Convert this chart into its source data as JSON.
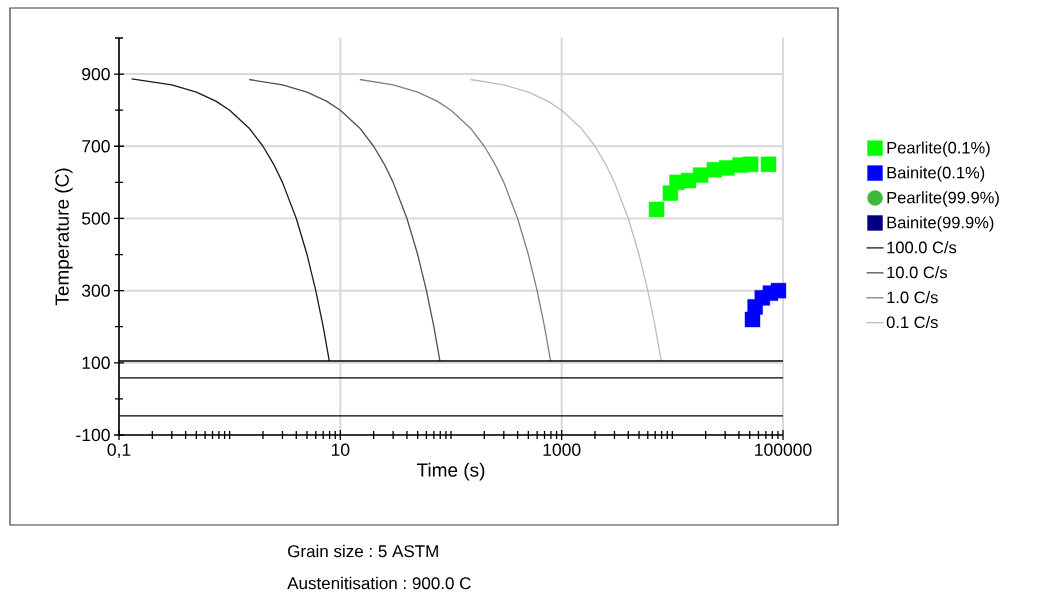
{
  "chart_data": {
    "type": "line",
    "xlabel": "Time (s)",
    "ylabel": "Temperature (C)",
    "log": "x",
    "grid": true,
    "legend": "right",
    "xlim": [
      0.1,
      100000
    ],
    "ylim": [
      -100,
      1000
    ],
    "xticks": [
      {
        "value": 0.1,
        "label": "0,1"
      },
      {
        "value": 1,
        "label": null
      },
      10,
      {
        "value": 100,
        "label": null
      },
      1000,
      {
        "value": 10000,
        "label": null
      },
      100000
    ],
    "yticks": [
      -100,
      {
        "value": 0,
        "label": null
      },
      100,
      {
        "value": 200,
        "label": null
      },
      300,
      {
        "value": 400,
        "label": null
      },
      500,
      {
        "value": 600,
        "label": null
      },
      700,
      {
        "value": 800,
        "label": null
      },
      900,
      {
        "value": 1000,
        "label": null
      }
    ],
    "series": [
      {
        "name": "Pearlite(0.1%)",
        "type": "scatter",
        "marker": "square",
        "color": "#00ff00",
        "x": [
          7200,
          9600,
          11000,
          14000,
          18000,
          24000,
          31000,
          41000,
          51000,
          74000
        ],
        "values": [
          525,
          570,
          600,
          605,
          620,
          635,
          640,
          648,
          650,
          650
        ]
      },
      {
        "name": "Bainite(0.1%)",
        "type": "scatter",
        "marker": "square",
        "color": "#0000ff",
        "x": [
          53000,
          56000,
          65000,
          77000,
          91000
        ],
        "values": [
          220,
          255,
          280,
          293,
          300
        ]
      },
      {
        "name": "Pearlite(99.9%)",
        "type": "scatter",
        "marker": "circle",
        "color": "#3cb93c"
      },
      {
        "name": "Bainite(99.9%)",
        "type": "scatter",
        "marker": "square",
        "color": "#000080"
      },
      {
        "name": "100.0 C/s",
        "marker": "none",
        "color": "#1a1a1a",
        "x": [
          0.13,
          0.3,
          0.5,
          0.75,
          1,
          1.5,
          2,
          2.5,
          3,
          4,
          5,
          6,
          7,
          7.95
        ],
        "values": [
          887,
          870,
          850,
          825,
          800,
          750,
          700,
          650,
          600,
          500,
          400,
          300,
          200,
          105
        ]
      },
      {
        "name": "10.0 C/s",
        "marker": "none",
        "color": "#505050",
        "x": [
          1.5,
          3,
          5,
          7.5,
          10,
          15,
          20,
          25,
          30,
          40,
          50,
          60,
          70,
          79.5
        ],
        "values": [
          885,
          870,
          850,
          825,
          800,
          750,
          700,
          650,
          600,
          500,
          400,
          300,
          200,
          105
        ]
      },
      {
        "name": "1.0 C/s",
        "marker": "none",
        "color": "#808080",
        "x": [
          15,
          30,
          50,
          75,
          100,
          150,
          200,
          250,
          300,
          400,
          500,
          600,
          700,
          795
        ],
        "values": [
          885,
          870,
          850,
          825,
          800,
          750,
          700,
          650,
          600,
          500,
          400,
          300,
          200,
          105
        ]
      },
      {
        "name": "0.1 C/s",
        "marker": "none",
        "color": "#bdbdbd",
        "x": [
          150,
          300,
          500,
          750,
          1000,
          1500,
          2000,
          2500,
          3000,
          4000,
          5000,
          6000,
          7000,
          7950
        ],
        "values": [
          885,
          870,
          850,
          825,
          800,
          750,
          700,
          650,
          600,
          500,
          400,
          300,
          200,
          105
        ]
      }
    ],
    "ref_lines": [
      {
        "axis": "y",
        "value": 105,
        "color": "#000000"
      },
      {
        "axis": "y",
        "value": 58,
        "color": "#000000"
      },
      {
        "axis": "y",
        "value": -47,
        "color": "#000000"
      }
    ],
    "annotations": [
      "Grain size : 5 ASTM",
      "Austenitisation : 900.0 C"
    ]
  }
}
